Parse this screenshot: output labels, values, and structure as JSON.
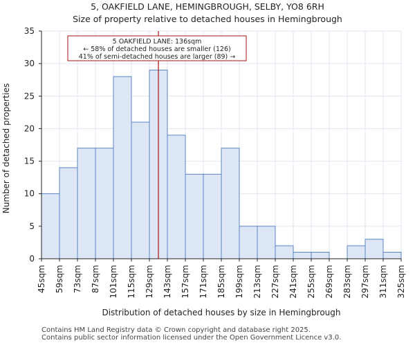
{
  "header": {
    "title": "5, OAKFIELD LANE, HEMINGBROUGH, SELBY, YO8 6RH",
    "subtitle": "Size of property relative to detached houses in Hemingbrough"
  },
  "chart_data": {
    "type": "bar",
    "xlabel": "Distribution of detached houses by size in Hemingbrough",
    "ylabel": "Number of detached properties",
    "ylim": [
      0,
      35
    ],
    "yticks": [
      0,
      5,
      10,
      15,
      20,
      25,
      30,
      35
    ],
    "grid": true,
    "bin_edges": [
      "45sqm",
      "59sqm",
      "73sqm",
      "87sqm",
      "101sqm",
      "115sqm",
      "129sqm",
      "143sqm",
      "157sqm",
      "171sqm",
      "185sqm",
      "199sqm",
      "213sqm",
      "227sqm",
      "241sqm",
      "255sqm",
      "269sqm",
      "283sqm",
      "297sqm",
      "311sqm",
      "325sqm"
    ],
    "bin_edge_values": [
      45,
      59,
      73,
      87,
      101,
      115,
      129,
      143,
      157,
      171,
      185,
      199,
      213,
      227,
      241,
      255,
      269,
      283,
      297,
      311,
      325
    ],
    "values": [
      10,
      14,
      17,
      17,
      28,
      21,
      29,
      19,
      13,
      13,
      17,
      5,
      5,
      2,
      1,
      1,
      0,
      2,
      3,
      1
    ],
    "marker": {
      "value": 136,
      "line1": "5 OAKFIELD LANE: 136sqm",
      "line2": "← 58% of detached houses are smaller (126)",
      "line3": "41% of semi-detached houses are larger (89) →"
    },
    "colors": {
      "bar_fill": "#dce6f5",
      "bar_stroke": "#5b84c4",
      "marker": "#aa1111",
      "grid": "#dfe6f2",
      "axis": "#222222"
    }
  },
  "footer": {
    "line1": "Contains HM Land Registry data © Crown copyright and database right 2025.",
    "line2": "Contains public sector information licensed under the Open Government Licence v3.0."
  }
}
